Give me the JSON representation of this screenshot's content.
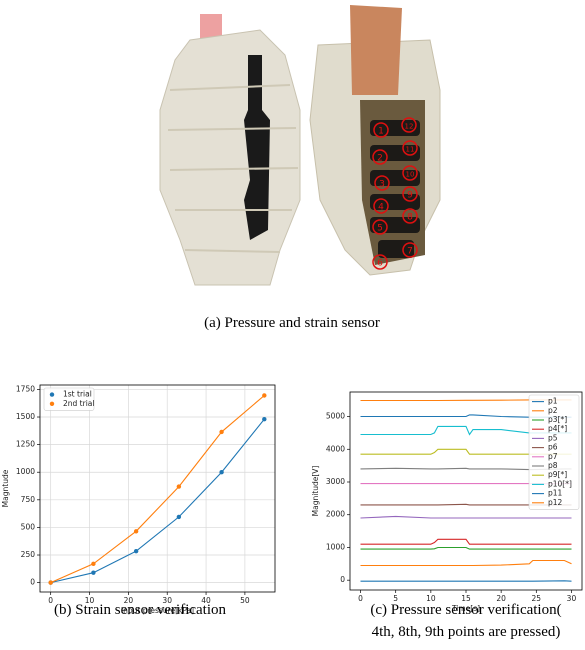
{
  "figure": {
    "photo_labels": [
      "1",
      "2",
      "3",
      "4",
      "5",
      "6",
      "7",
      "8",
      "9",
      "10",
      "11",
      "12"
    ],
    "caption": "(a) Pressure and strain sensor"
  },
  "chart_data": [
    {
      "type": "line",
      "markers": true,
      "grid": true,
      "legend": "upper left",
      "caption": [
        "(b) Strain sensor verification"
      ],
      "xlabel": "Input pressure[kPa]",
      "ylabel": "Magntude",
      "x": [
        0,
        11,
        22,
        33,
        44,
        55
      ],
      "xlim": [
        -2.75,
        57.75
      ],
      "xticks": [
        0,
        10,
        20,
        30,
        40,
        50
      ],
      "ylim": [
        -85,
        1790
      ],
      "yticks": [
        0,
        250,
        500,
        750,
        1000,
        1250,
        1500,
        1750
      ],
      "series": [
        {
          "name": "1st trial",
          "color": "#1f77b4",
          "values": [
            0,
            90,
            285,
            595,
            1000,
            1480
          ]
        },
        {
          "name": "2nd trial",
          "color": "#ff7f0e",
          "values": [
            0,
            170,
            465,
            870,
            1365,
            1695
          ]
        }
      ]
    },
    {
      "type": "line",
      "markers": false,
      "grid": false,
      "legend": "upper right",
      "caption": [
        "(c) Pressure sensor verification(",
        "4th, 8th, 9th points are pressed)"
      ],
      "xlabel": "Time[s]",
      "ylabel": "Magnitude[V]",
      "x": [
        0,
        5,
        10,
        10.5,
        11,
        15,
        15.5,
        16,
        20,
        24,
        24.5,
        29,
        30
      ],
      "xlim": [
        -1.5,
        31.5
      ],
      "xticks": [
        0,
        5,
        10,
        15,
        20,
        25,
        30
      ],
      "ylim": [
        -300,
        5750
      ],
      "yticks": [
        0,
        1000,
        2000,
        3000,
        4000,
        5000
      ],
      "series": [
        {
          "name": "p1",
          "color": "#1f77b4",
          "values": [
            5000,
            5000,
            5000,
            5000,
            5000,
            5000,
            5050,
            5050,
            5000,
            4980,
            4980,
            4980,
            4980
          ]
        },
        {
          "name": "p2",
          "color": "#ff7f0e",
          "values": [
            5490,
            5490,
            5490,
            5490,
            5490,
            5495,
            5495,
            5495,
            5500,
            5510,
            5510,
            5510,
            5510
          ]
        },
        {
          "name": "p3[*]",
          "color": "#2ca02c",
          "values": [
            950,
            950,
            950,
            960,
            1000,
            1000,
            950,
            950,
            950,
            950,
            950,
            950,
            950
          ]
        },
        {
          "name": "p4[*]",
          "color": "#d62728",
          "values": [
            1100,
            1100,
            1100,
            1150,
            1250,
            1250,
            1100,
            1100,
            1100,
            1100,
            1100,
            1100,
            1100
          ]
        },
        {
          "name": "p5",
          "color": "#9467bd",
          "values": [
            1900,
            1950,
            1900,
            1900,
            1900,
            1900,
            1900,
            1900,
            1900,
            1900,
            1900,
            1900,
            1900
          ]
        },
        {
          "name": "p6",
          "color": "#8c564b",
          "values": [
            2300,
            2300,
            2300,
            2300,
            2300,
            2320,
            2300,
            2300,
            2300,
            2300,
            2300,
            2300,
            2300
          ]
        },
        {
          "name": "p7",
          "color": "#e377c2",
          "values": [
            2950,
            2950,
            2950,
            2950,
            2950,
            2950,
            2950,
            2950,
            2950,
            2950,
            2950,
            2950,
            2950
          ]
        },
        {
          "name": "p8",
          "color": "#7f7f7f",
          "values": [
            3400,
            3420,
            3400,
            3400,
            3400,
            3420,
            3400,
            3400,
            3400,
            3380,
            3380,
            3400,
            3400
          ]
        },
        {
          "name": "p9[*]",
          "color": "#bcbd22",
          "values": [
            3850,
            3850,
            3850,
            3900,
            4000,
            4000,
            3850,
            3850,
            3850,
            3850,
            3850,
            3850,
            3850
          ]
        },
        {
          "name": "p10[*]",
          "color": "#17becf",
          "values": [
            4450,
            4450,
            4450,
            4500,
            4700,
            4700,
            4450,
            4600,
            4600,
            4500,
            4500,
            4500,
            4500
          ]
        },
        {
          "name": "p11",
          "color": "#1f77b4",
          "values": [
            -30,
            -30,
            -30,
            -30,
            -30,
            -30,
            -30,
            -30,
            -30,
            -30,
            -30,
            -20,
            -30
          ]
        },
        {
          "name": "p12",
          "color": "#ff7f0e",
          "values": [
            450,
            450,
            450,
            450,
            450,
            450,
            450,
            450,
            460,
            500,
            600,
            600,
            500
          ]
        }
      ]
    }
  ]
}
